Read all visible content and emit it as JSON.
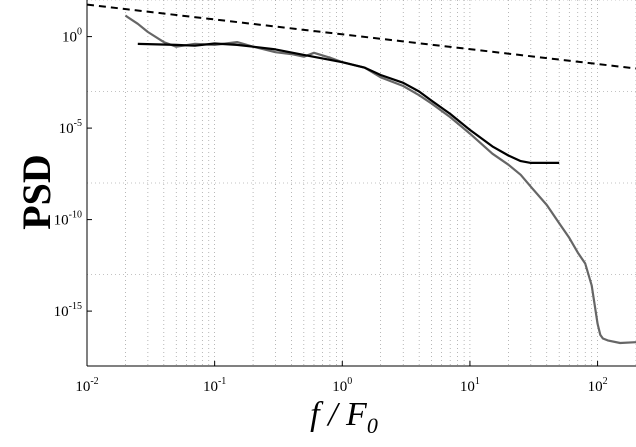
{
  "chart_data": {
    "type": "line",
    "title": "",
    "ylabel": "PSD",
    "xlabel": {
      "main": "f / F",
      "subscript": "0"
    },
    "xscale": "log",
    "yscale": "log",
    "xlim": [
      0.01,
      200
    ],
    "ylim": [
      1e-18,
      100.0
    ],
    "grid": true,
    "legend": "none",
    "xticks": [
      {
        "value": 0.01,
        "base": "10",
        "exp": "-2"
      },
      {
        "value": 0.1,
        "base": "10",
        "exp": "-1"
      },
      {
        "value": 1,
        "base": "10",
        "exp": "0"
      },
      {
        "value": 10,
        "base": "10",
        "exp": "1"
      },
      {
        "value": 100,
        "base": "10",
        "exp": "2"
      }
    ],
    "yticks": [
      {
        "value": 1,
        "base": "10",
        "exp": "0"
      },
      {
        "value": 1e-05,
        "base": "10",
        "exp": "-5"
      },
      {
        "value": 1e-10,
        "base": "10",
        "exp": "-10"
      },
      {
        "value": 1e-15,
        "base": "10",
        "exp": "-15"
      }
    ],
    "series": [
      {
        "color": "#666666",
        "style": "solid",
        "x": [
          0.02,
          0.025,
          0.03,
          0.04,
          0.05,
          0.07,
          0.1,
          0.15,
          0.2,
          0.3,
          0.4,
          0.5,
          0.6,
          0.8,
          1,
          1.5,
          2,
          3,
          4,
          5,
          7,
          10,
          15,
          20,
          25,
          30,
          40,
          50,
          60,
          70,
          80,
          90,
          100,
          105,
          110,
          120,
          150,
          200
        ],
        "y": [
          14.1,
          5.0,
          1.78,
          0.5,
          0.28,
          0.4,
          0.35,
          0.5,
          0.28,
          0.14,
          0.11,
          0.08,
          0.13,
          0.07,
          0.04,
          0.02,
          0.006,
          0.002,
          0.00063,
          0.00022,
          4e-05,
          5e-06,
          4e-07,
          1e-07,
          2.8e-08,
          6.3e-09,
          6.3e-10,
          6.3e-11,
          1e-11,
          1.58e-12,
          4e-13,
          2.5e-14,
          2e-16,
          5e-17,
          3.2e-17,
          2.5e-17,
          1.8e-17,
          2e-17
        ]
      },
      {
        "color": "#000000",
        "style": "solid",
        "x": [
          0.025,
          0.05,
          0.07,
          0.1,
          0.15,
          0.2,
          0.3,
          0.5,
          1,
          1.5,
          2,
          3,
          4,
          5,
          7,
          10,
          15,
          20,
          25,
          30,
          35,
          40,
          45,
          50
        ],
        "y": [
          0.4,
          0.35,
          0.32,
          0.42,
          0.35,
          0.28,
          0.2,
          0.1,
          0.04,
          0.02,
          0.008,
          0.003,
          0.001,
          0.00032,
          6e-05,
          8e-06,
          1e-06,
          3.2e-07,
          1.58e-07,
          1.26e-07,
          1.26e-07,
          1.26e-07,
          1.26e-07,
          1.26e-07
        ]
      },
      {
        "color": "#000000",
        "style": "dashed",
        "x": [
          0.01,
          200
        ],
        "y": [
          56,
          0.018
        ]
      }
    ]
  }
}
